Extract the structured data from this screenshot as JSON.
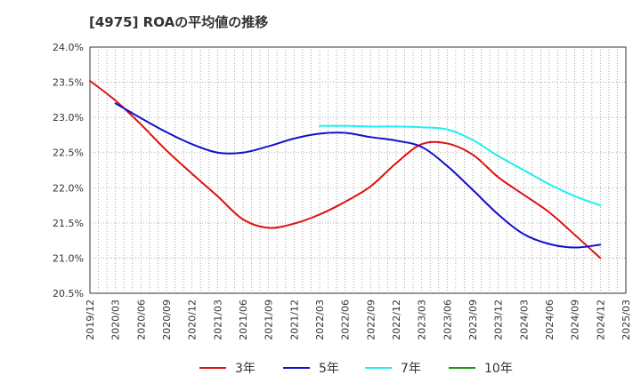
{
  "title": "[4975]  ROAの平均値の推移",
  "chart_data": {
    "type": "line",
    "title": "[4975]  ROAの平均値の推移",
    "xlabel": "",
    "ylabel": "",
    "x": [
      "2019/12",
      "2020/03",
      "2020/06",
      "2020/09",
      "2020/12",
      "2021/03",
      "2021/06",
      "2021/09",
      "2021/12",
      "2022/03",
      "2022/06",
      "2022/09",
      "2022/12",
      "2023/03",
      "2023/06",
      "2023/09",
      "2023/12",
      "2024/03",
      "2024/06",
      "2024/09",
      "2024/12",
      "2025/03"
    ],
    "yticks": [
      "20.5%",
      "21.0%",
      "21.5%",
      "22.0%",
      "22.5%",
      "23.0%",
      "23.5%",
      "24.0%"
    ],
    "ylim": [
      20.5,
      24.0
    ],
    "grid": true,
    "legend_position": "bottom",
    "series": [
      {
        "name": "3年",
        "color": "#dd1111",
        "values": [
          23.52,
          23.24,
          22.9,
          22.53,
          22.2,
          21.88,
          21.55,
          21.43,
          21.49,
          21.62,
          21.8,
          22.02,
          22.35,
          22.62,
          22.63,
          22.47,
          22.15,
          21.9,
          21.65,
          21.33,
          21.0,
          null
        ]
      },
      {
        "name": "5年",
        "color": "#1111cc",
        "values": [
          null,
          23.2,
          22.99,
          22.79,
          22.62,
          22.5,
          22.5,
          22.59,
          22.7,
          22.77,
          22.78,
          22.72,
          22.67,
          22.58,
          22.31,
          21.97,
          21.62,
          21.34,
          21.2,
          21.15,
          21.19,
          null
        ]
      },
      {
        "name": "7年",
        "color": "#22eeee",
        "values": [
          null,
          null,
          null,
          null,
          null,
          null,
          null,
          null,
          null,
          22.88,
          22.88,
          22.87,
          22.87,
          22.86,
          22.83,
          22.68,
          22.45,
          22.25,
          22.05,
          21.88,
          21.75,
          null
        ]
      },
      {
        "name": "10年",
        "color": "#119911",
        "values": [
          null,
          null,
          null,
          null,
          null,
          null,
          null,
          null,
          null,
          null,
          null,
          null,
          null,
          null,
          null,
          null,
          null,
          null,
          null,
          null,
          null,
          null
        ]
      }
    ]
  }
}
